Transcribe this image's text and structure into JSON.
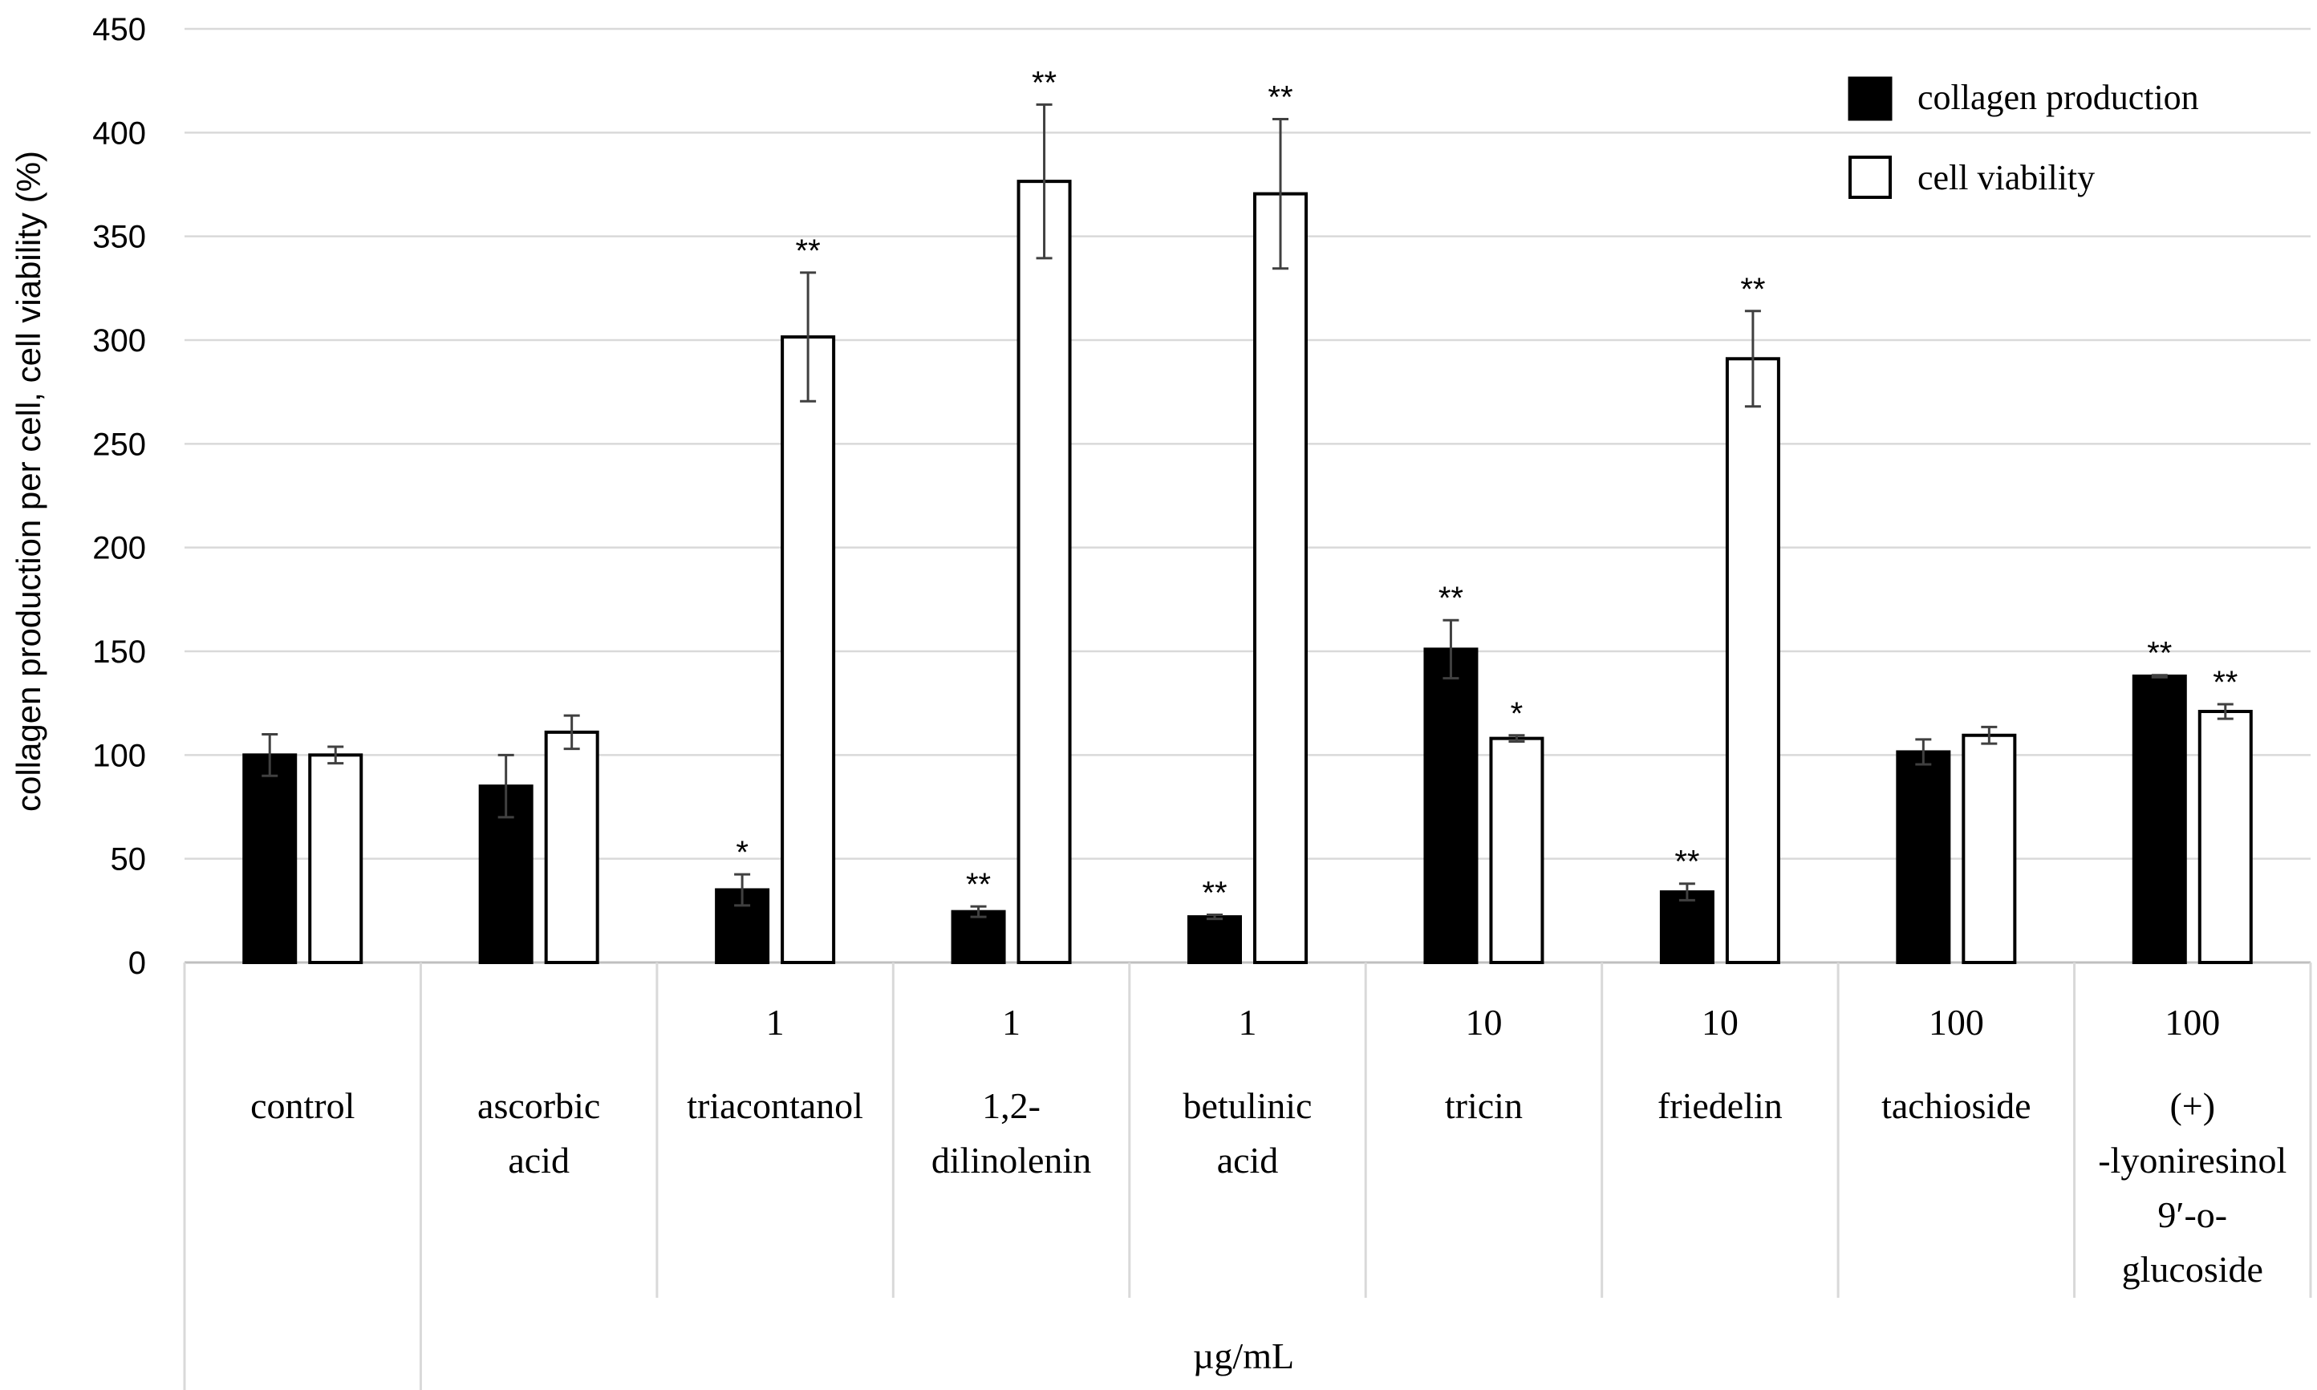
{
  "chart_data": {
    "type": "bar",
    "ylabel": "collagen production per cell, cell viability  (%)",
    "ylim": [
      0,
      450
    ],
    "yticks": [
      0,
      50,
      100,
      150,
      200,
      250,
      300,
      350,
      400,
      450
    ],
    "grid": true,
    "legend_position": "top-right",
    "unit_label": "µg/mL",
    "categories": [
      {
        "name_lines": [
          "control"
        ],
        "conc": ""
      },
      {
        "name_lines": [
          "ascorbic",
          "acid"
        ],
        "conc": ""
      },
      {
        "name_lines": [
          "triacontanol"
        ],
        "conc": "1"
      },
      {
        "name_lines": [
          "1,2-",
          "dilinolenin"
        ],
        "conc": "1"
      },
      {
        "name_lines": [
          "betulinic",
          "acid"
        ],
        "conc": "1"
      },
      {
        "name_lines": [
          "tricin"
        ],
        "conc": "10"
      },
      {
        "name_lines": [
          "friedelin"
        ],
        "conc": "10"
      },
      {
        "name_lines": [
          "tachioside"
        ],
        "conc": "100"
      },
      {
        "name_lines": [
          "(+)",
          "-lyoniresinol",
          "9′-o-",
          "glucoside"
        ],
        "conc": "100"
      }
    ],
    "series": [
      {
        "name": "collagen production",
        "fill": "#000000",
        "values": [
          100,
          85,
          35,
          24.5,
          22,
          151,
          34,
          101.5,
          138
        ],
        "errors": [
          10,
          15,
          7.5,
          2.5,
          1,
          14,
          4,
          6,
          0.5
        ],
        "significance": [
          "",
          "",
          "*",
          "**",
          "**",
          "**",
          "**",
          "",
          "**"
        ]
      },
      {
        "name": "cell viability",
        "fill": "#ffffff",
        "values": [
          100,
          111,
          301.5,
          376.5,
          370.5,
          108,
          291,
          109.5,
          121
        ],
        "errors": [
          4,
          8,
          31,
          37,
          36,
          1.5,
          23,
          4,
          3.5
        ],
        "significance": [
          "",
          "",
          "**",
          "**",
          "**",
          "*",
          "**",
          "",
          "**"
        ]
      }
    ]
  }
}
